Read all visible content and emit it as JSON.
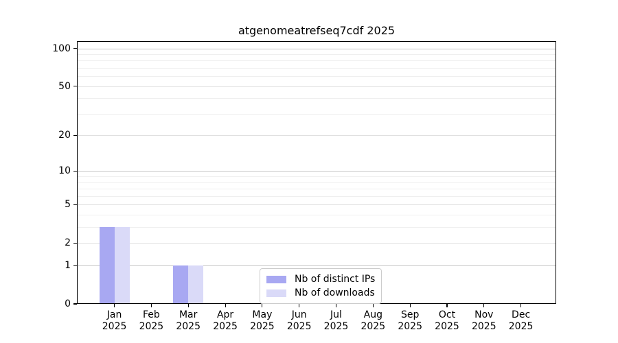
{
  "title": "atgenomeatrefseq7cdf 2025",
  "colors": {
    "bar_distinct_ips": "#a8a8f2",
    "bar_downloads": "#dadaf8",
    "spine": "#000000",
    "grid_major": "#c5c5c5",
    "grid_labeled_minor": "#e0e0e0",
    "grid_minor": "#efefef",
    "text": "#000000",
    "legend_border": "#cccccc",
    "background": "#ffffff"
  },
  "legend": {
    "items": [
      {
        "label": "Nb of distinct IPs",
        "color": "#a8a8f2"
      },
      {
        "label": "Nb of downloads",
        "color": "#dadaf8"
      }
    ]
  },
  "chart_data": {
    "type": "bar",
    "title": "atgenomeatrefseq7cdf 2025",
    "months": [
      "Jan",
      "Feb",
      "Mar",
      "Apr",
      "May",
      "Jun",
      "Jul",
      "Aug",
      "Sep",
      "Oct",
      "Nov",
      "Dec"
    ],
    "year": "2025",
    "categories": [
      "Jan 2025",
      "Feb 2025",
      "Mar 2025",
      "Apr 2025",
      "May 2025",
      "Jun 2025",
      "Jul 2025",
      "Aug 2025",
      "Sep 2025",
      "Oct 2025",
      "Nov 2025",
      "Dec 2025"
    ],
    "series": [
      {
        "name": "Nb of distinct IPs",
        "color": "#a8a8f2",
        "values": [
          3,
          0,
          1,
          0,
          0,
          0,
          0,
          0,
          0,
          0,
          0,
          0
        ]
      },
      {
        "name": "Nb of downloads",
        "color": "#dadaf8",
        "values": [
          3,
          0,
          1,
          0,
          0,
          0,
          0,
          0,
          0,
          0,
          0,
          0
        ]
      }
    ],
    "y_scale": "log1p",
    "y_ticks": [
      0,
      1,
      2,
      5,
      10,
      20,
      50,
      100
    ],
    "y_major_ticks": [
      1,
      10,
      100
    ],
    "y_minor_gridlines": [
      3,
      4,
      6,
      7,
      8,
      9,
      30,
      40,
      60,
      70,
      80,
      90
    ],
    "ylim": [
      0,
      114
    ],
    "xlabel": "",
    "ylabel": "",
    "grid": "horizontal",
    "legend_position": "inside lower center"
  }
}
